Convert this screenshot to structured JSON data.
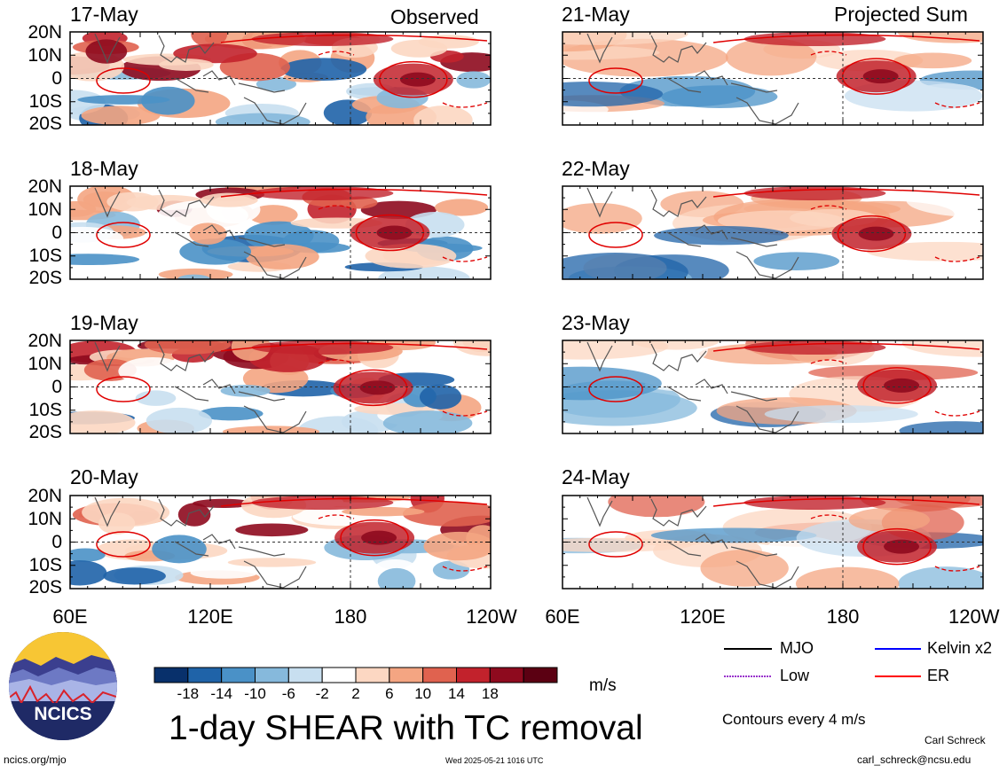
{
  "header": {
    "observed": "Observed",
    "projected": "Projected Sum"
  },
  "panels": {
    "left": [
      {
        "date": "17-May"
      },
      {
        "date": "18-May"
      },
      {
        "date": "19-May"
      },
      {
        "date": "20-May"
      }
    ],
    "right": [
      {
        "date": "21-May"
      },
      {
        "date": "22-May"
      },
      {
        "date": "23-May"
      },
      {
        "date": "24-May"
      }
    ]
  },
  "axes": {
    "lat_ticks": [
      "20N",
      "10N",
      "0",
      "10S",
      "20S"
    ],
    "lon_ticks": [
      "60E",
      "120E",
      "180",
      "120W"
    ]
  },
  "colorbar": {
    "labels": [
      "-18",
      "-14",
      "-10",
      "-6",
      "-2",
      "2",
      "6",
      "10",
      "14",
      "18"
    ],
    "colors": [
      "#08306b",
      "#1f63a8",
      "#4a91c7",
      "#86b9dc",
      "#c8dff0",
      "#ffffff",
      "#fcd7c2",
      "#f4a582",
      "#e0624f",
      "#c2222c",
      "#8e0a1e",
      "#5b0012"
    ],
    "unit": "m/s"
  },
  "legend": {
    "mjo": "MJO",
    "kelvin": "Kelvin x2",
    "low": "Low",
    "er": "ER",
    "contour_note": "Contours every 4 m/s",
    "colors": {
      "mjo": "#000000",
      "kelvin": "#0000ff",
      "low": "#9933cc",
      "er": "#ff0000"
    }
  },
  "title": "1-day SHEAR with TC removal",
  "logo": {
    "text": "NCICS"
  },
  "footer": {
    "url": "ncics.org/mjo",
    "timestamp": "Wed 2025-05-21 1016 UTC",
    "author": "Carl Schreck",
    "email": "carl_schreck@ncsu.edu"
  }
}
